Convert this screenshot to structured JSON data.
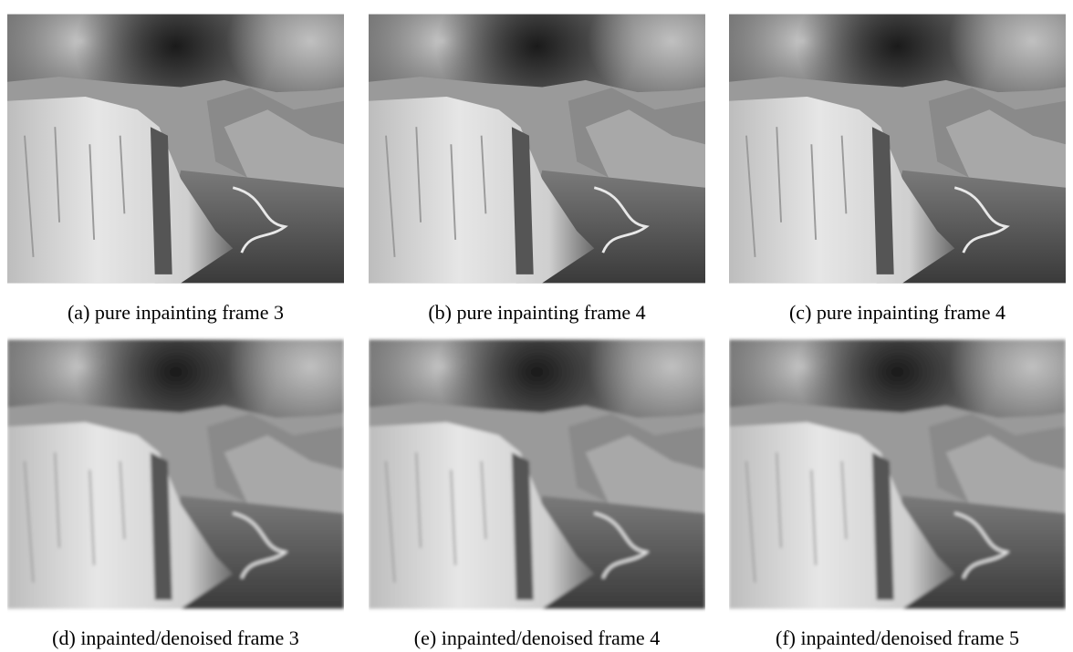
{
  "figure": {
    "panels": [
      {
        "caption": "(a) pure inpainting frame 3"
      },
      {
        "caption": "(b) pure inpainting frame 4"
      },
      {
        "caption": "(c) pure inpainting frame 4"
      },
      {
        "caption": "(d) inpainted/denoised frame 3"
      },
      {
        "caption": "(e) inpainted/denoised frame 4"
      },
      {
        "caption": "(f) inpainted/denoised frame 5"
      }
    ]
  }
}
